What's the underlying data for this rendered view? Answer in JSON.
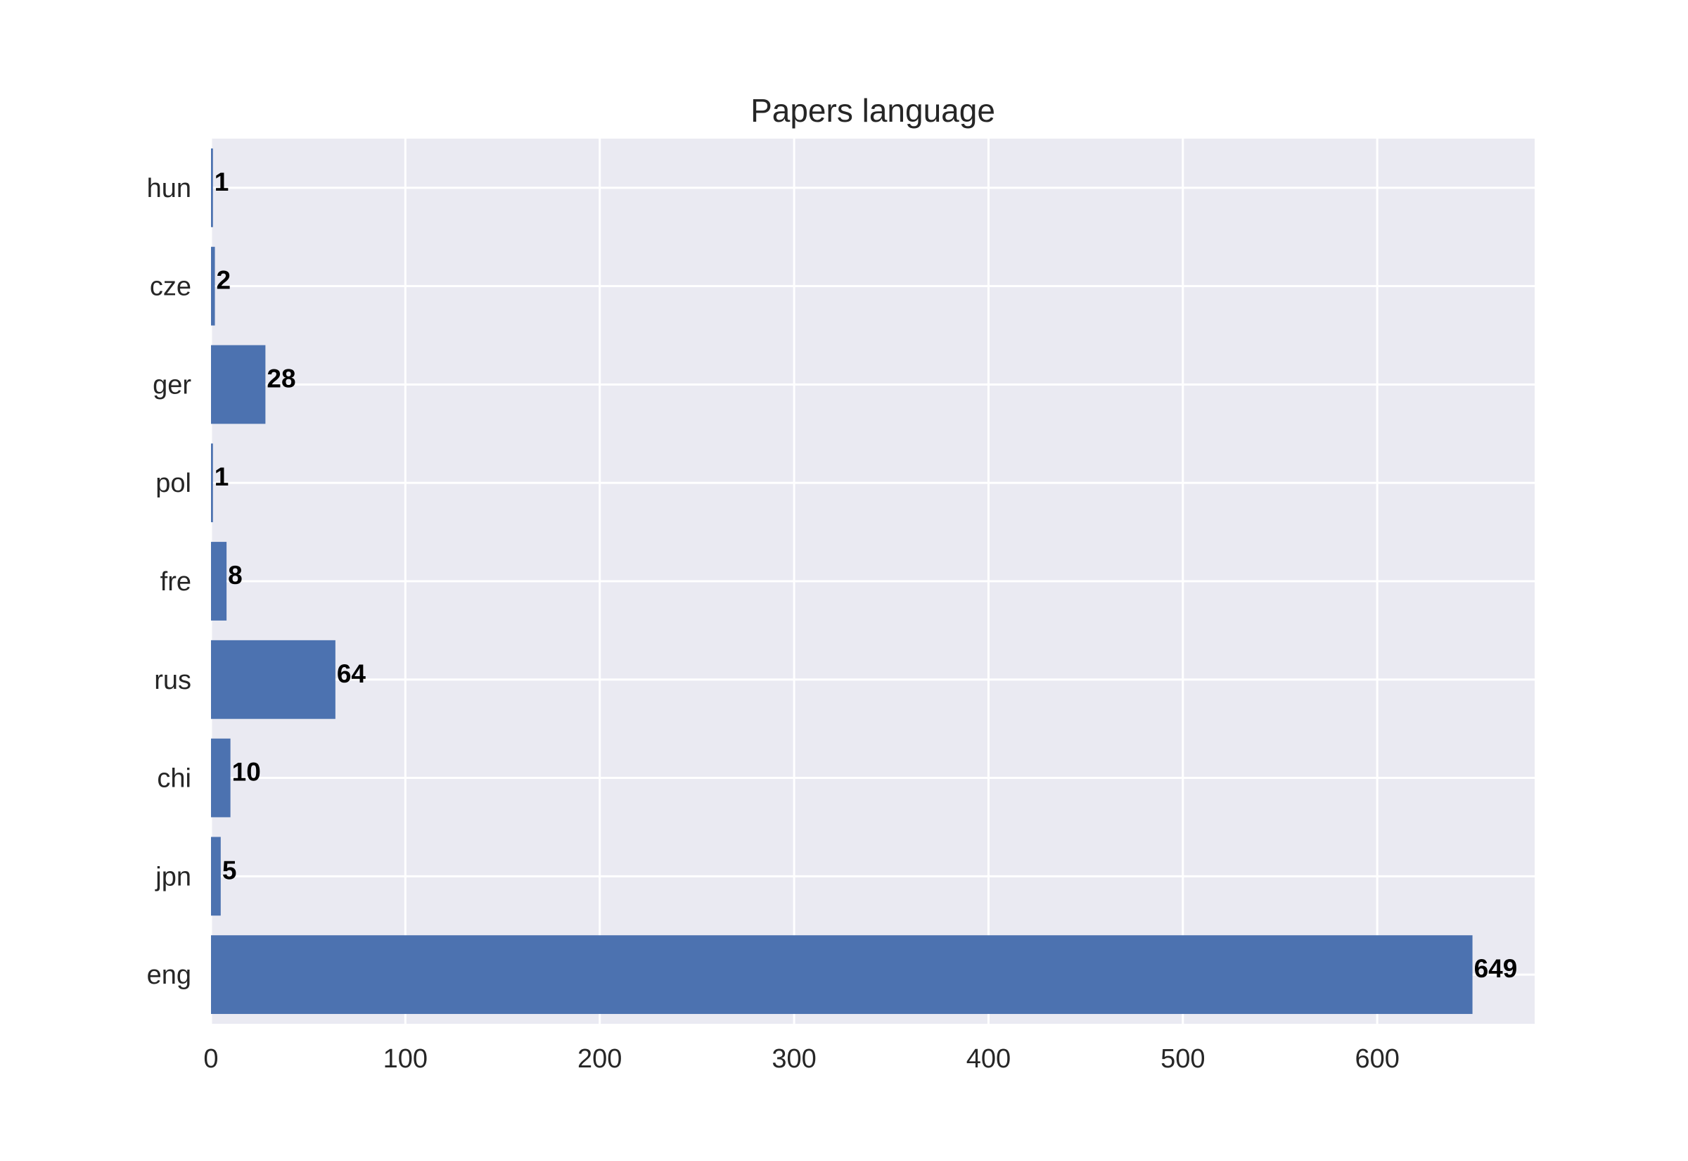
{
  "chart_data": {
    "type": "bar",
    "orientation": "horizontal",
    "title": "Papers language",
    "xlabel": "",
    "ylabel": "",
    "categories": [
      "eng",
      "jpn",
      "chi",
      "rus",
      "fre",
      "pol",
      "ger",
      "cze",
      "hun"
    ],
    "values": [
      649,
      5,
      10,
      64,
      8,
      1,
      28,
      2,
      1
    ],
    "data_labels": [
      "649",
      "5",
      "10",
      "64",
      "8",
      "1",
      "28",
      "2",
      "1"
    ],
    "xlim": [
      0,
      681
    ],
    "xticks": [
      0,
      100,
      200,
      300,
      400,
      500,
      600
    ],
    "xtick_labels": [
      "0",
      "100",
      "200",
      "300",
      "400",
      "500",
      "600"
    ],
    "grid": true,
    "legend": "none",
    "colors": {
      "bar": "#4c72b0",
      "plot_background": "#eaeaf2",
      "grid": "#ffffff",
      "text": "#262626",
      "data_label": "#000000"
    }
  }
}
